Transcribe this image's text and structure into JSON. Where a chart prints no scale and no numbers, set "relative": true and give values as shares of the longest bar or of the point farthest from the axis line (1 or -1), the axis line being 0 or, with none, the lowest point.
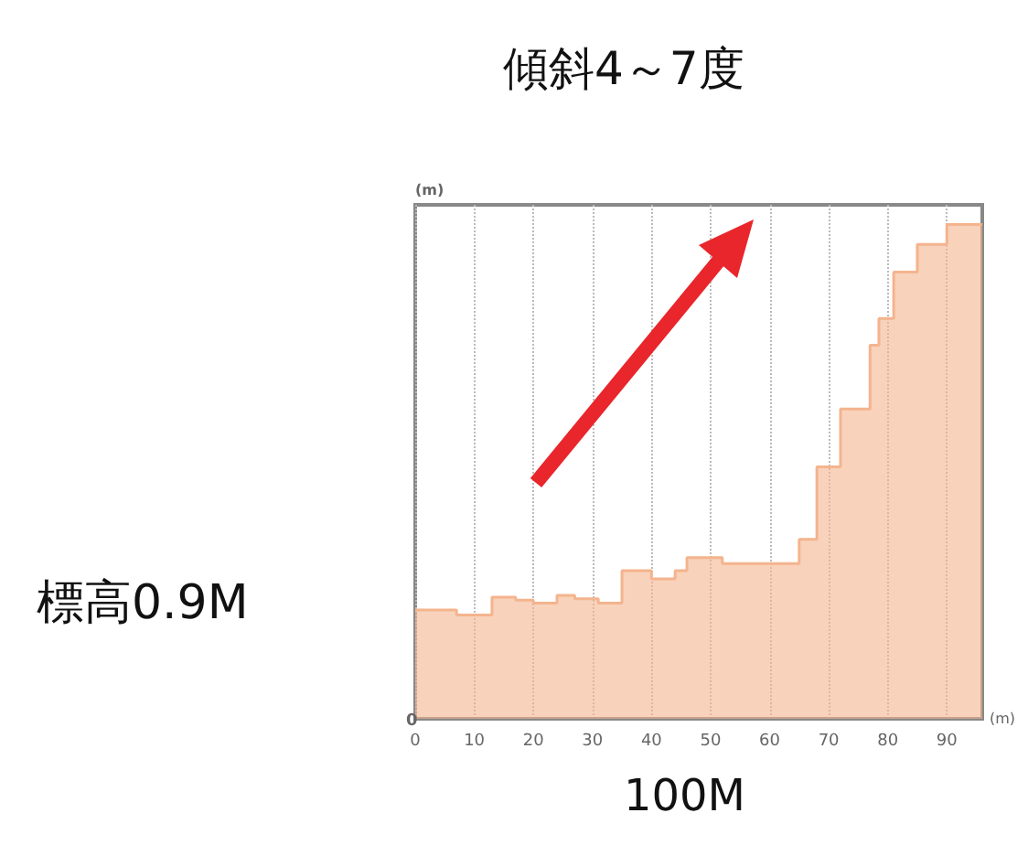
{
  "chart_data": {
    "type": "area",
    "title": "傾斜4～7度",
    "xlabel": "(m)",
    "ylabel": "(m)",
    "relative": true,
    "x": [
      0,
      7,
      7,
      13,
      13,
      17,
      17,
      20,
      20,
      24,
      24,
      27,
      27,
      31,
      31,
      35,
      35,
      40,
      40,
      44,
      44,
      46,
      46,
      52,
      52,
      65,
      65,
      68,
      68,
      72,
      72,
      77,
      77,
      78.5,
      78.5,
      81,
      81,
      85,
      85,
      90,
      90,
      96
    ],
    "series": [
      {
        "color": "#f4b48e",
        "values": [
          0.22,
          0.22,
          0.21,
          0.21,
          0.246,
          0.246,
          0.24,
          0.24,
          0.234,
          0.234,
          0.25,
          0.25,
          0.243,
          0.243,
          0.234,
          0.234,
          0.3,
          0.3,
          0.283,
          0.283,
          0.3,
          0.3,
          0.326,
          0.326,
          0.314,
          0.314,
          0.363,
          0.363,
          0.51,
          0.51,
          0.627,
          0.627,
          0.756,
          0.756,
          0.81,
          0.81,
          0.904,
          0.904,
          0.96,
          0.96,
          1,
          1
        ]
      }
    ],
    "xlim": [
      0,
      96
    ],
    "xticks": [
      0,
      10,
      20,
      30,
      40,
      50,
      60,
      70,
      80,
      90
    ],
    "grid": "x",
    "annotations": [
      "0",
      "標高0.9M",
      "100M"
    ]
  }
}
